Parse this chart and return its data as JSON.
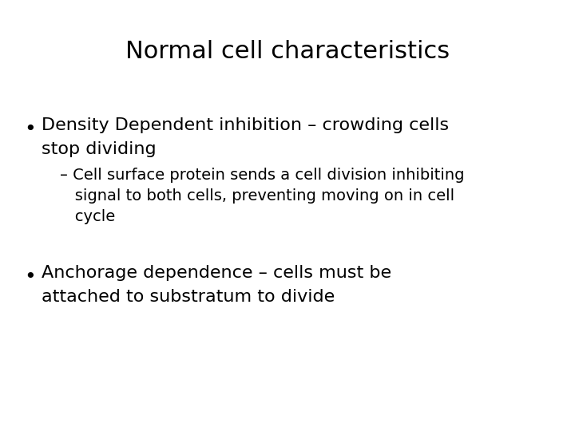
{
  "title": "Normal cell characteristics",
  "title_fontsize": 22,
  "background_color": "#ffffff",
  "text_color": "#000000",
  "bullet1_line1": "Density Dependent inhibition – crowding cells",
  "bullet1_line2": "stop dividing",
  "sub_bullet_line1": "– Cell surface protein sends a cell division inhibiting",
  "sub_bullet_line2": "   signal to both cells, preventing moving on in cell",
  "sub_bullet_line3": "   cycle",
  "bullet2_line1": "Anchorage dependence – cells must be",
  "bullet2_line2": "attached to substratum to divide",
  "bullet_fontsize": 16,
  "sub_bullet_fontsize": 14,
  "font_family": "DejaVu Sans"
}
